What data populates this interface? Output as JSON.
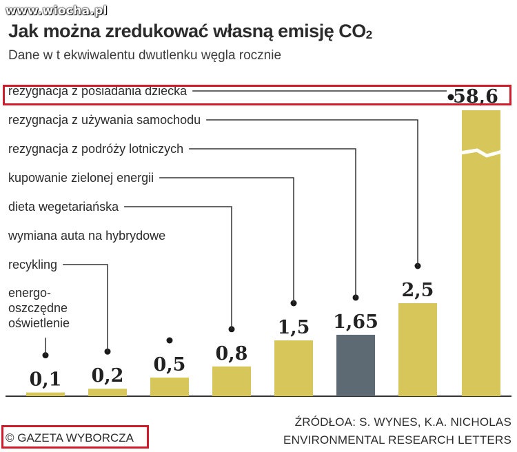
{
  "watermark": "www.wiocha.pl",
  "header": {
    "title": "Jak można zredukować własną emisję CO",
    "title_sub": "2",
    "subtitle": "Dane w t ekwiwalentu dwutlenku węgla rocznie"
  },
  "footer": {
    "copyright": "© GAZETA WYBORCZA",
    "source_line1": "ŹRÓDŁOA: S. WYNES, K.A. NICHOLAS",
    "source_line2": "ENVIRONMENTAL RESEARCH LETTERS"
  },
  "colors": {
    "bar": "#d7c75a",
    "bar_highlight": "#5e6a73",
    "highlight_border": "#d01c2a",
    "axis": "#333333"
  },
  "chart_data": {
    "type": "bar",
    "categories": [
      "energo-\noszczędne\noświetlenie",
      "recykling",
      "wymiana auta na hybrydowe",
      "dieta wegetariańska",
      "kupowanie zielonej energii",
      "rezygnacja z podróży lotniczych",
      "rezygnacja z używania samochodu",
      "rezygnacja z posiadania dziecka"
    ],
    "values": [
      0.1,
      0.2,
      0.5,
      0.8,
      1.5,
      1.65,
      2.5,
      58.6
    ],
    "value_labels": [
      "0,1",
      "0,2",
      "0,5",
      "0,8",
      "1,5",
      "1,65",
      "2,5",
      "58,6"
    ],
    "highlighted_index": 5,
    "broken_axis_index": 7
  }
}
